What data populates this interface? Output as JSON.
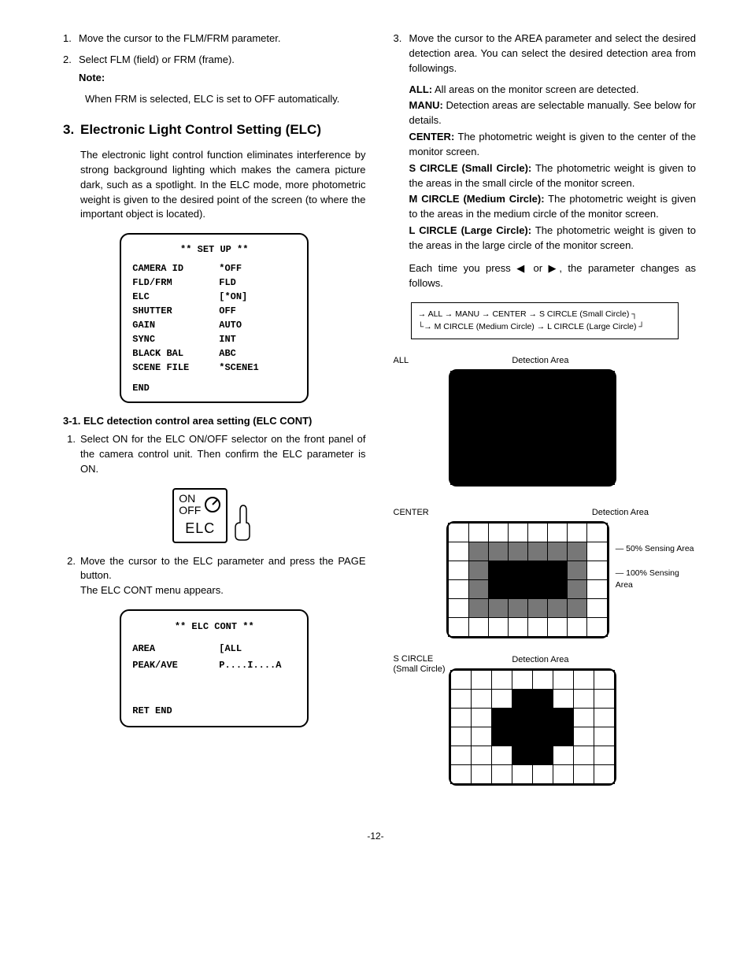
{
  "left": {
    "step1": {
      "num": "1.",
      "text": "Move the cursor to the FLM/FRM parameter."
    },
    "step2": {
      "num": "2.",
      "text": "Select FLM (field) or FRM (frame).",
      "note_label": "Note:",
      "note_text": "When FRM is selected, ELC is set to OFF automatically."
    },
    "section3": {
      "num": "3.",
      "title": "Electronic Light Control Setting (ELC)",
      "body": "The electronic light control function eliminates interference by strong background lighting which makes the camera picture dark, such as a spotlight. In the ELC mode, more photometric weight is given to the desired point of the screen (to where the important object is located)."
    },
    "menu1": {
      "title": "**  SET UP  **",
      "rows": [
        {
          "k": "CAMERA ID",
          "v": "*OFF"
        },
        {
          "k": "FLD/FRM",
          "v": " FLD"
        },
        {
          "k": "ELC",
          "v": "[*ON]"
        },
        {
          "k": "SHUTTER",
          "v": " OFF"
        },
        {
          "k": "GAIN",
          "v": " AUTO"
        },
        {
          "k": "SYNC",
          "v": " INT"
        },
        {
          "k": "BLACK BAL",
          "v": " ABC"
        },
        {
          "k": "SCENE FILE",
          "v": "*SCENE1"
        }
      ],
      "end": "END"
    },
    "sub31": {
      "head": "3-1. ELC detection control area setting (ELC CONT)",
      "s1": {
        "num": "1.",
        "text": "Select ON for the ELC ON/OFF selector on the front panel of the camera control unit. Then confirm the ELC parameter is ON."
      },
      "s2": {
        "num": "2.",
        "text": "Move the cursor to the ELC parameter and press the PAGE button.",
        "text2": "The ELC CONT menu appears."
      }
    },
    "switch": {
      "on": "ON",
      "off": "OFF",
      "label": "ELC"
    },
    "menu2": {
      "title": "**  ELC CONT  **",
      "rows": [
        {
          "k": "AREA",
          "v": "[ALL"
        },
        {
          "k": "PEAK/AVE",
          "v": "P....I....A"
        }
      ],
      "bottom": "RET   END"
    }
  },
  "right": {
    "step3": {
      "num": "3.",
      "text": "Move the cursor to the AREA parameter and select the desired detection area. You can select the desired detection area from followings."
    },
    "defs": [
      {
        "term": "ALL:",
        "body": " All areas on the monitor screen are detected."
      },
      {
        "term": "MANU:",
        "body": " Detection areas are selectable manually. See below for details."
      },
      {
        "term": "CENTER:",
        "body": " The photometric weight is given to the center of the monitor screen."
      },
      {
        "term": "S CIRCLE (Small Circle):",
        "body": " The photometric weight is given to the areas in the small circle of the monitor screen."
      },
      {
        "term": "M CIRCLE (Medium Circle):",
        "body": " The photometric weight is given to the areas in the medium circle of the monitor screen."
      },
      {
        "term": "L CIRCLE (Large Circle):",
        "body": " The photometric weight is given to the areas in the large circle of the monitor screen."
      }
    ],
    "para": "Each time you press ◀ or ▶, the parameter changes as follows.",
    "cycle": {
      "row1": "→ ALL → MANU → CENTER → S CIRCLE (Small Circle) ┐",
      "row2": "└→ M CIRCLE (Medium Circle) → L CIRCLE (Large Circle) ┘"
    },
    "grids": {
      "caption": "Detection Area",
      "g1": {
        "label": "ALL",
        "rows": 6,
        "cols": 8,
        "pattern": "all_on"
      },
      "g2": {
        "label": "CENTER",
        "rows": 6,
        "cols": 8,
        "annot1": "50% Sensing Area",
        "annot2": "100% Sensing Area"
      },
      "g3": {
        "label": "S CIRCLE (Small Circle)",
        "rows": 6,
        "cols": 8
      }
    }
  },
  "page": "-12-",
  "colors": {
    "fg": "#000000",
    "bg": "#ffffff",
    "half": "#777777"
  }
}
